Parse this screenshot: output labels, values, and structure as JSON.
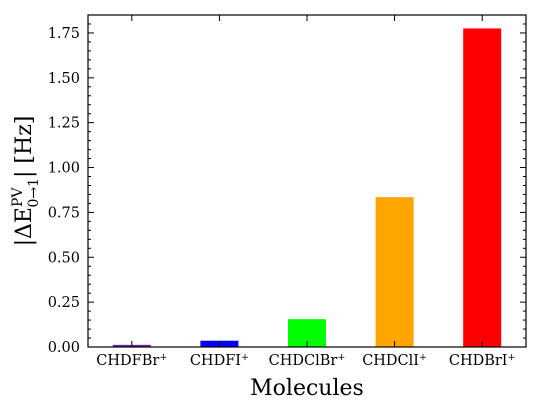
{
  "chart_data": {
    "type": "bar",
    "categories": [
      {
        "base": "CHDFBr",
        "sup": "+"
      },
      {
        "base": "CHDFI",
        "sup": "+"
      },
      {
        "base": "CHDClBr",
        "sup": "+"
      },
      {
        "base": "CHDClI",
        "sup": "+"
      },
      {
        "base": "CHDBrI",
        "sup": "+"
      }
    ],
    "values": [
      0.012,
      0.035,
      0.155,
      0.835,
      1.775
    ],
    "colors": [
      "#7b1fa2",
      "#0000ff",
      "#00ff00",
      "#ffa500",
      "#ff0000"
    ],
    "xlabel": "Molecules",
    "ylabel": {
      "pre": "|ΔE",
      "sup": "PV",
      "sub": "0→1",
      "post": "| [Hz]"
    },
    "ylim": [
      0,
      1.85
    ],
    "yticks": [
      "0.00",
      "0.25",
      "0.50",
      "0.75",
      "1.00",
      "1.25",
      "1.50",
      "1.75"
    ],
    "ytick_values": [
      0,
      0.25,
      0.5,
      0.75,
      1.0,
      1.25,
      1.5,
      1.75
    ],
    "grid": false,
    "legend": "none"
  }
}
